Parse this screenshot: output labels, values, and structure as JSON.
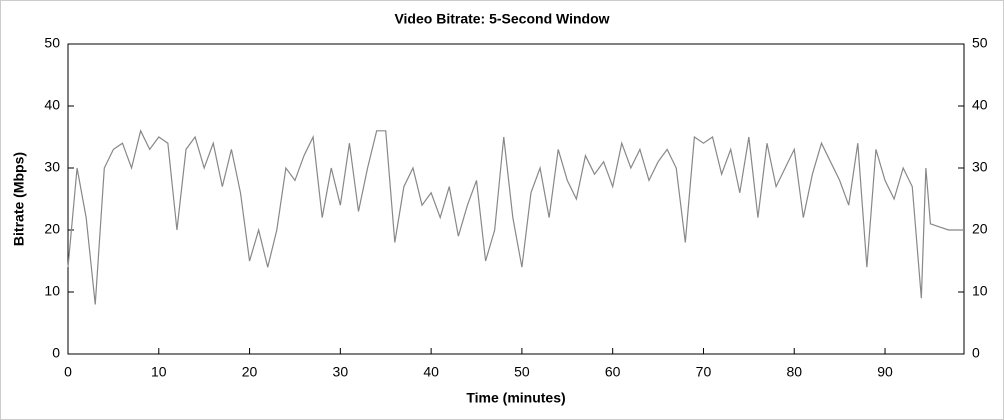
{
  "chart_data": {
    "type": "line",
    "title": "Video Bitrate: 5-Second Window",
    "x_label": "Time (minutes)",
    "y_label": "Bitrate (Mbps)",
    "x": [
      0,
      1,
      2,
      3,
      4,
      5,
      6,
      7,
      8,
      9,
      10,
      11,
      12,
      13,
      14,
      15,
      16,
      17,
      18,
      19,
      20,
      21,
      22,
      23,
      24,
      25,
      26,
      27,
      28,
      29,
      30,
      31,
      32,
      33,
      34,
      35,
      36,
      37,
      38,
      39,
      40,
      41,
      42,
      43,
      44,
      45,
      46,
      47,
      48,
      49,
      50,
      51,
      52,
      53,
      54,
      55,
      56,
      57,
      58,
      59,
      60,
      61,
      62,
      63,
      64,
      65,
      66,
      67,
      68,
      69,
      70,
      71,
      72,
      73,
      74,
      75,
      76,
      77,
      78,
      79,
      80,
      81,
      82,
      83,
      84,
      85,
      86,
      87,
      88,
      89,
      90,
      91,
      92,
      93,
      94,
      94.5,
      95,
      96,
      97,
      98,
      98.7
    ],
    "series": [
      {
        "name": "Bitrate",
        "color": "#888888",
        "values": [
          14,
          30,
          22,
          8,
          30,
          33,
          34,
          30,
          36,
          33,
          35,
          34,
          20,
          33,
          35,
          30,
          34,
          27,
          33,
          26,
          15,
          20,
          14,
          20,
          30,
          28,
          32,
          35,
          22,
          30,
          24,
          34,
          23,
          30,
          36,
          36,
          18,
          27,
          30,
          24,
          26,
          22,
          27,
          19,
          24,
          28,
          15,
          20,
          35,
          22,
          14,
          26,
          30,
          22,
          33,
          28,
          25,
          32,
          29,
          31,
          27,
          34,
          30,
          33,
          28,
          31,
          33,
          30,
          18,
          35,
          34,
          35,
          29,
          33,
          26,
          35,
          22,
          34,
          27,
          30,
          33,
          22,
          29,
          34,
          31,
          28,
          24,
          34,
          14,
          33,
          28,
          25,
          30,
          27,
          9,
          30,
          21,
          20.5,
          20,
          20,
          20
        ]
      }
    ],
    "xlim": [
      0,
      98.7
    ],
    "xticks": [
      0,
      10,
      20,
      30,
      40,
      50,
      60,
      70,
      80,
      90
    ],
    "ylim": [
      0,
      50
    ],
    "yticks": [
      0,
      10,
      20,
      30,
      40,
      50
    ],
    "y2lim": [
      0,
      50
    ],
    "y2ticks": [
      0,
      10,
      20,
      30,
      40,
      50
    ]
  }
}
